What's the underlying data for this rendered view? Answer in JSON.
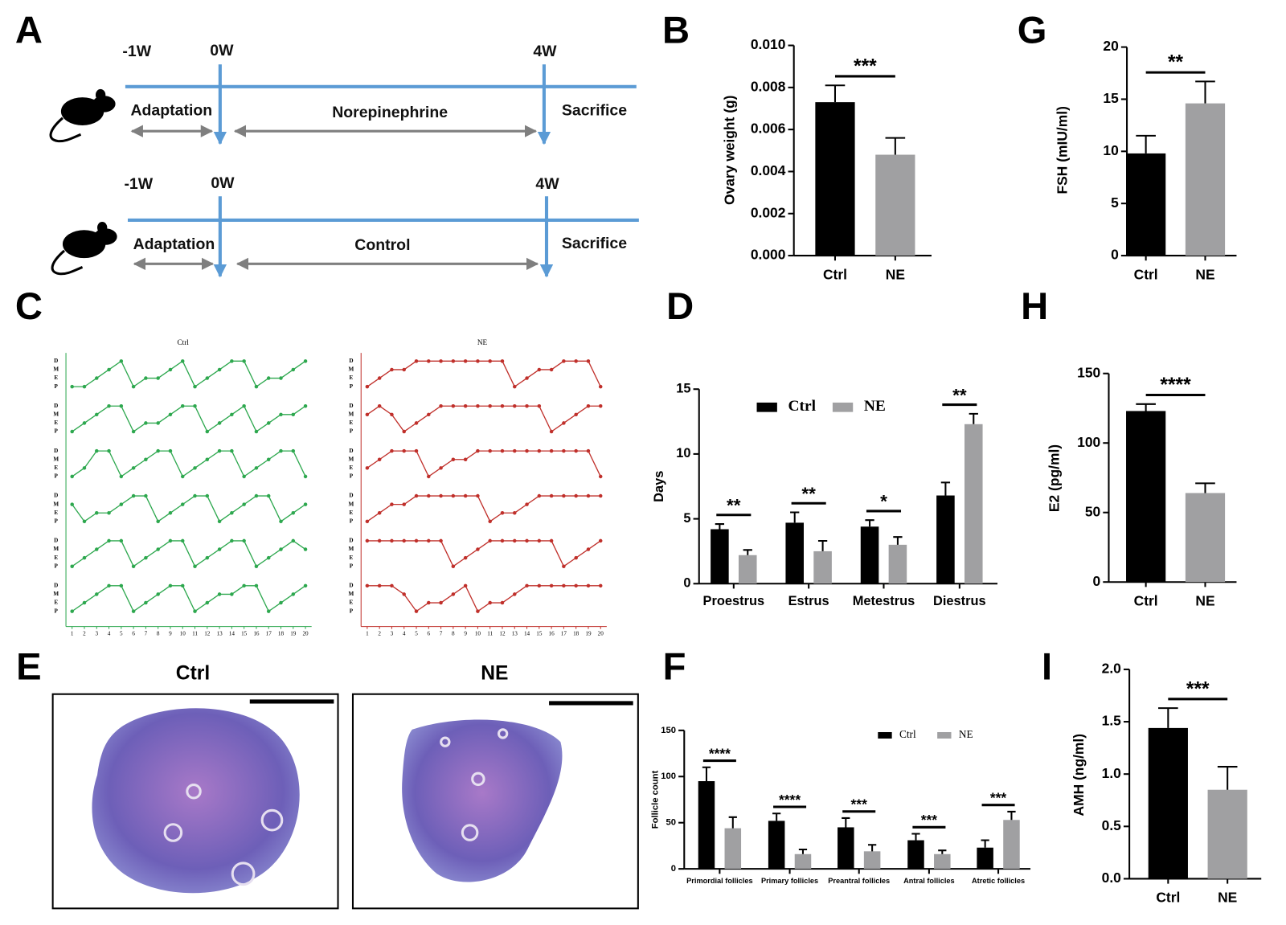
{
  "panel_labels": [
    "A",
    "B",
    "G",
    "C",
    "D",
    "H",
    "E",
    "F",
    "I"
  ],
  "timeline": {
    "rows": [
      {
        "start": "-1W",
        "zero": "0W",
        "end": "4W",
        "phase1": "Adaptation",
        "phase2": "Norepinephrine",
        "phase3": "Sacrifice"
      },
      {
        "start": "-1W",
        "zero": "0W",
        "end": "4W",
        "phase1": "Adaptation",
        "phase2": "Control",
        "phase3": "Sacrifice"
      }
    ]
  },
  "histology": {
    "panels": [
      {
        "title": "Ctrl"
      },
      {
        "title": "NE"
      }
    ]
  },
  "chart_data": [
    {
      "type": "bar",
      "ylabel": "Ovary weight (g)",
      "categories": [
        "Ctrl",
        "NE"
      ],
      "values": [
        0.0073,
        0.0048
      ],
      "errors": [
        0.0008,
        0.0008
      ],
      "colors": [
        "#000000",
        "#a0a0a2"
      ],
      "ylim": [
        0,
        0.01
      ],
      "yticks": [
        {
          "value": 0,
          "label": "0.000"
        },
        {
          "value": 0.002,
          "label": "0.002"
        },
        {
          "value": 0.004,
          "label": "0.004"
        },
        {
          "value": 0.006,
          "label": "0.006"
        },
        {
          "value": 0.008,
          "label": "0.008"
        },
        {
          "value": 0.01,
          "label": "0.010"
        }
      ],
      "significance": "***"
    },
    {
      "type": "bar",
      "ylabel": "FSH (mIU/ml)",
      "categories": [
        "Ctrl",
        "NE"
      ],
      "values": [
        9.8,
        14.6
      ],
      "errors": [
        1.7,
        2.1
      ],
      "colors": [
        "#000000",
        "#a0a0a2"
      ],
      "ylim": [
        0,
        20
      ],
      "yticks": [
        0,
        5,
        10,
        15,
        20
      ],
      "significance": "**"
    },
    {
      "type": "bar",
      "ylabel": "Days",
      "categories": [
        "Proestrus",
        "Estrus",
        "Metestrus",
        "Diestrus"
      ],
      "series": [
        {
          "name": "Ctrl",
          "color": "#000000",
          "values": [
            4.2,
            4.7,
            4.4,
            6.8
          ],
          "errors": [
            0.4,
            0.8,
            0.5,
            1.0
          ]
        },
        {
          "name": "NE",
          "color": "#a0a0a2",
          "values": [
            2.2,
            2.5,
            3.0,
            12.3
          ],
          "errors": [
            0.4,
            0.8,
            0.6,
            0.8
          ]
        }
      ],
      "ylim": [
        0,
        15
      ],
      "yticks": [
        0,
        5,
        10,
        15
      ],
      "significance": [
        "**",
        "**",
        "*",
        "**"
      ],
      "legend": "top"
    },
    {
      "type": "bar",
      "ylabel": "E2 (pg/ml)",
      "categories": [
        "Ctrl",
        "NE"
      ],
      "values": [
        123,
        64
      ],
      "errors": [
        5,
        7
      ],
      "colors": [
        "#000000",
        "#a0a0a2"
      ],
      "ylim": [
        0,
        150
      ],
      "yticks": [
        0,
        50,
        100,
        150
      ],
      "significance": "****"
    },
    {
      "type": "bar",
      "ylabel": "Follicle count",
      "categories": [
        "Primordial follicles",
        "Primary follicles",
        "Preantral follicles",
        "Antral follicles",
        "Atretic follicles"
      ],
      "series": [
        {
          "name": "Ctrl",
          "color": "#000000",
          "values": [
            95,
            52,
            45,
            31,
            23
          ],
          "errors": [
            15,
            8,
            10,
            7,
            8
          ]
        },
        {
          "name": "NE",
          "color": "#a0a0a2",
          "values": [
            44,
            16,
            19,
            16,
            53
          ],
          "errors": [
            12,
            5,
            7,
            4,
            9
          ]
        }
      ],
      "ylim": [
        0,
        150
      ],
      "yticks": [
        0,
        50,
        100,
        150
      ],
      "significance": [
        "****",
        "****",
        "***",
        "***",
        "***"
      ],
      "legend": "top right"
    },
    {
      "type": "bar",
      "ylabel": "AMH (ng/ml)",
      "categories": [
        "Ctrl",
        "NE"
      ],
      "values": [
        1.44,
        0.85
      ],
      "errors": [
        0.19,
        0.22
      ],
      "colors": [
        "#000000",
        "#a0a0a2"
      ],
      "ylim": [
        0,
        2
      ],
      "yticks": [
        {
          "value": 0,
          "label": "0.0"
        },
        {
          "value": 0.5,
          "label": "0.5"
        },
        {
          "value": 1,
          "label": "1.0"
        },
        {
          "value": 1.5,
          "label": "1.5"
        },
        {
          "value": 2,
          "label": "2.0"
        }
      ],
      "significance": "***"
    },
    {
      "type": "line",
      "title": "Ctrl",
      "x": [
        1,
        2,
        3,
        4,
        5,
        6,
        7,
        8,
        9,
        10,
        11,
        12,
        13,
        14,
        15,
        16,
        17,
        18,
        19,
        20
      ],
      "xlim": [
        0.5,
        20.5
      ],
      "ylim": [
        0,
        3
      ],
      "yticks": [
        {
          "value": 3,
          "label": "D"
        },
        {
          "value": 2,
          "label": "M"
        },
        {
          "value": 1,
          "label": "E"
        },
        {
          "value": 0,
          "label": "P"
        }
      ],
      "series": [
        {
          "color": "#2ea84f",
          "values": [
            0,
            0,
            1,
            2,
            3,
            0,
            1,
            1,
            2,
            3,
            0,
            1,
            2,
            3,
            3,
            0,
            1,
            1,
            2,
            3
          ]
        },
        {
          "color": "#2ea84f",
          "values": [
            0,
            1,
            2,
            3,
            3,
            0,
            1,
            1,
            2,
            3,
            3,
            0,
            1,
            2,
            3,
            0,
            1,
            2,
            2,
            3
          ]
        },
        {
          "color": "#2ea84f",
          "values": [
            0,
            1,
            3,
            3,
            0,
            1,
            2,
            3,
            3,
            0,
            1,
            2,
            3,
            3,
            0,
            1,
            2,
            3,
            3,
            0
          ]
        },
        {
          "color": "#2ea84f",
          "values": [
            2,
            0,
            1,
            1,
            2,
            3,
            3,
            0,
            1,
            2,
            3,
            3,
            0,
            1,
            2,
            3,
            3,
            0,
            1,
            2
          ]
        },
        {
          "color": "#2ea84f",
          "values": [
            0,
            1,
            2,
            3,
            3,
            0,
            1,
            2,
            3,
            3,
            0,
            1,
            2,
            3,
            3,
            0,
            1,
            2,
            3,
            2
          ]
        },
        {
          "color": "#2ea84f",
          "values": [
            0,
            1,
            2,
            3,
            3,
            0,
            1,
            2,
            3,
            3,
            0,
            1,
            2,
            2,
            3,
            3,
            0,
            1,
            2,
            3
          ]
        }
      ]
    },
    {
      "type": "line",
      "title": "NE",
      "x": [
        1,
        2,
        3,
        4,
        5,
        6,
        7,
        8,
        9,
        10,
        11,
        12,
        13,
        14,
        15,
        16,
        17,
        18,
        19,
        20
      ],
      "xlim": [
        0.5,
        20.5
      ],
      "ylim": [
        0,
        3
      ],
      "yticks": [
        {
          "value": 3,
          "label": "D"
        },
        {
          "value": 2,
          "label": "M"
        },
        {
          "value": 1,
          "label": "E"
        },
        {
          "value": 0,
          "label": "P"
        }
      ],
      "series": [
        {
          "color": "#c0302b",
          "values": [
            0,
            1,
            2,
            2,
            3,
            3,
            3,
            3,
            3,
            3,
            3,
            3,
            0,
            1,
            2,
            2,
            3,
            3,
            3,
            0
          ]
        },
        {
          "color": "#c0302b",
          "values": [
            2,
            3,
            2,
            0,
            1,
            2,
            3,
            3,
            3,
            3,
            3,
            3,
            3,
            3,
            3,
            0,
            1,
            2,
            3,
            3
          ]
        },
        {
          "color": "#c0302b",
          "values": [
            1,
            2,
            3,
            3,
            3,
            0,
            1,
            2,
            2,
            3,
            3,
            3,
            3,
            3,
            3,
            3,
            3,
            3,
            3,
            0
          ]
        },
        {
          "color": "#c0302b",
          "values": [
            0,
            1,
            2,
            2,
            3,
            3,
            3,
            3,
            3,
            3,
            0,
            1,
            1,
            2,
            3,
            3,
            3,
            3,
            3,
            3
          ]
        },
        {
          "color": "#c0302b",
          "values": [
            3,
            3,
            3,
            3,
            3,
            3,
            3,
            0,
            1,
            2,
            3,
            3,
            3,
            3,
            3,
            3,
            0,
            1,
            2,
            3
          ]
        },
        {
          "color": "#c0302b",
          "values": [
            3,
            3,
            3,
            2,
            0,
            1,
            1,
            2,
            3,
            0,
            1,
            1,
            2,
            3,
            3,
            3,
            3,
            3,
            3,
            3
          ]
        }
      ]
    }
  ]
}
